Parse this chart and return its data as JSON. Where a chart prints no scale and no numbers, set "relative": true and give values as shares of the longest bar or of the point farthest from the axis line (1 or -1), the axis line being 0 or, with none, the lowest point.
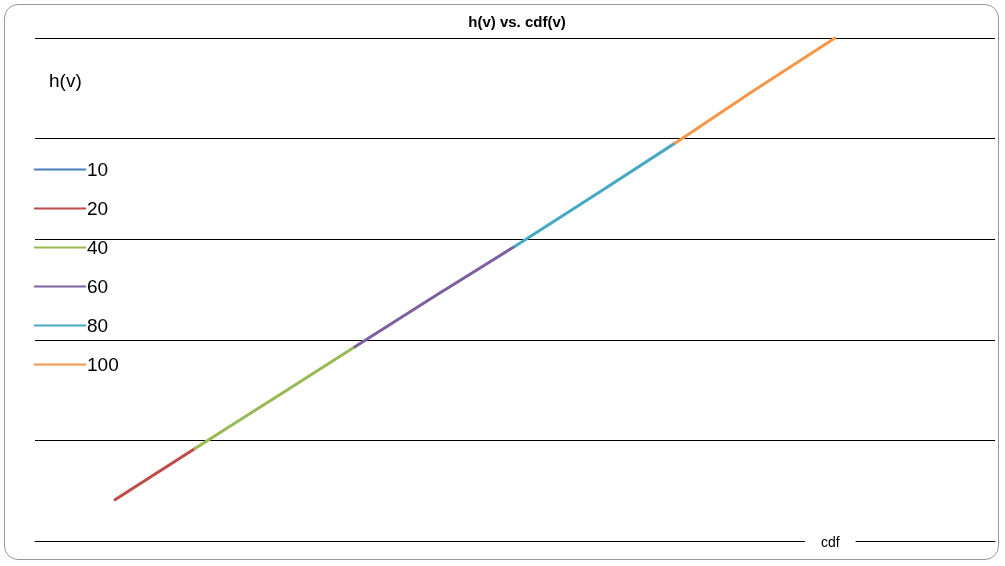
{
  "chart_data": {
    "type": "line",
    "title": "h(v) vs. cdf(v)",
    "xlabel": "cdf",
    "ylabel": "h(v)",
    "relative": true,
    "grid": "y",
    "legend": "left",
    "marker": "none",
    "line_style": "solid",
    "categories": [
      null,
      null,
      null,
      null,
      null,
      null,
      null,
      null,
      null,
      null,
      null,
      null,
      null
    ],
    "series": [
      {
        "name": "10",
        "color": "#4a7ebb",
        "values": [
          null,
          null,
          null,
          null,
          null,
          null,
          null,
          null,
          null,
          null,
          null,
          null,
          null
        ]
      },
      {
        "name": "20",
        "color": "#be4b48",
        "values": [
          null,
          0.082,
          0.184,
          null,
          null,
          null,
          null,
          null,
          null,
          null,
          null,
          null,
          null
        ]
      },
      {
        "name": "40",
        "color": "#98b954",
        "values": [
          null,
          null,
          0.184,
          0.285,
          0.386,
          null,
          null,
          null,
          null,
          null,
          null,
          null,
          null
        ]
      },
      {
        "name": "60",
        "color": "#7d60a0",
        "values": [
          null,
          null,
          null,
          null,
          0.386,
          0.487,
          0.586,
          null,
          null,
          null,
          null,
          null,
          null
        ]
      },
      {
        "name": "80",
        "color": "#46aac5",
        "values": [
          null,
          null,
          null,
          null,
          null,
          null,
          0.586,
          0.688,
          0.791,
          null,
          null,
          null,
          null
        ]
      },
      {
        "name": "100",
        "color": "#f79646",
        "values": [
          null,
          null,
          null,
          null,
          null,
          null,
          null,
          null,
          0.791,
          0.897,
          1,
          null,
          null
        ]
      }
    ]
  }
}
